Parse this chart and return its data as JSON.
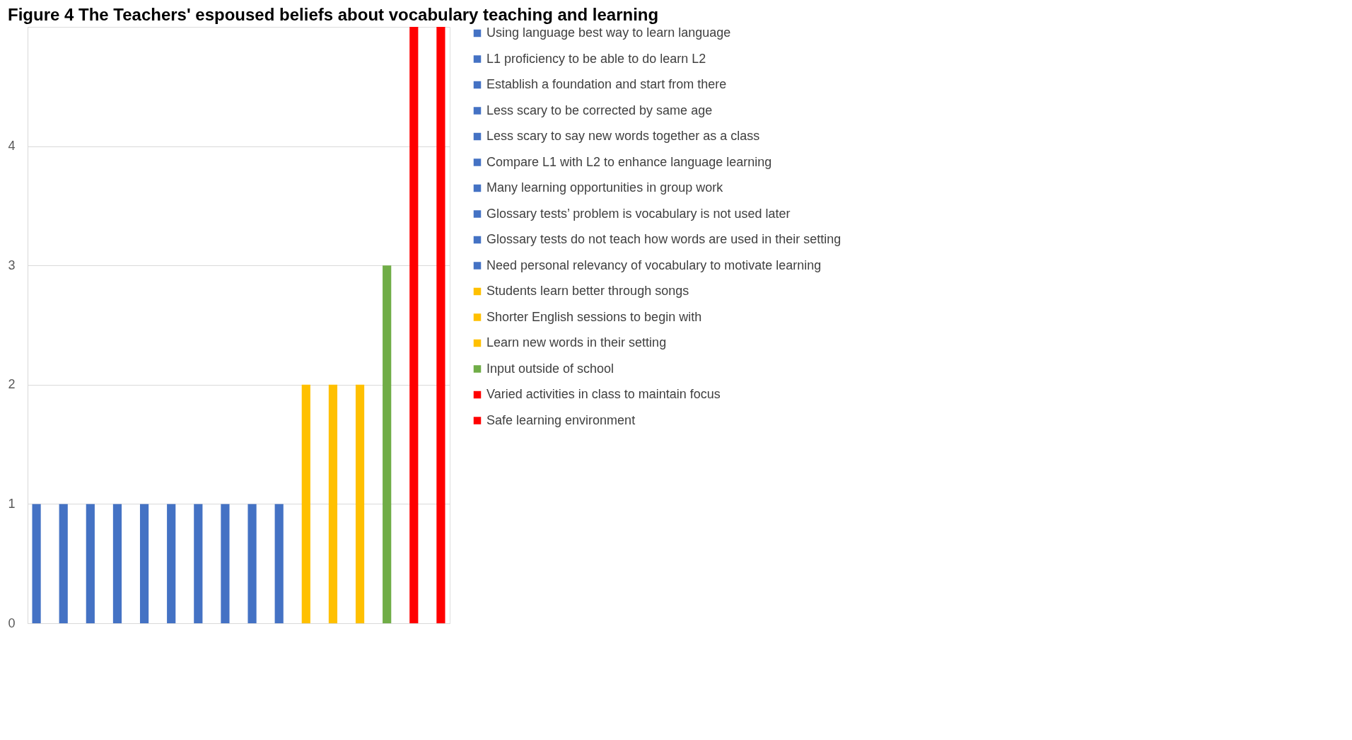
{
  "chart_data": {
    "type": "bar",
    "title": "Figure 4 The Teachers' espoused beliefs about vocabulary teaching and learning",
    "categories": [
      null,
      null,
      null,
      null,
      null,
      null,
      null,
      null,
      null,
      null,
      null,
      null,
      null,
      null,
      null,
      null
    ],
    "series": [
      {
        "name": "Using language best way to learn language",
        "color": "#4472c4",
        "values": [
          1,
          null,
          null,
          null,
          null,
          null,
          null,
          null,
          null,
          null,
          null,
          null,
          null,
          null,
          null,
          null
        ]
      },
      {
        "name": "L1 proficiency to be able to do learn L2",
        "color": "#4472c4",
        "values": [
          null,
          1,
          null,
          null,
          null,
          null,
          null,
          null,
          null,
          null,
          null,
          null,
          null,
          null,
          null,
          null
        ]
      },
      {
        "name": "Establish a foundation and start from there",
        "color": "#4472c4",
        "values": [
          null,
          null,
          1,
          null,
          null,
          null,
          null,
          null,
          null,
          null,
          null,
          null,
          null,
          null,
          null,
          null
        ]
      },
      {
        "name": "Less scary to be corrected by same age",
        "color": "#4472c4",
        "values": [
          null,
          null,
          null,
          1,
          null,
          null,
          null,
          null,
          null,
          null,
          null,
          null,
          null,
          null,
          null,
          null
        ]
      },
      {
        "name": "Less scary to say new words together as a class",
        "color": "#4472c4",
        "values": [
          null,
          null,
          null,
          null,
          1,
          null,
          null,
          null,
          null,
          null,
          null,
          null,
          null,
          null,
          null,
          null
        ]
      },
      {
        "name": "Compare L1 with  L2 to enhance language learning",
        "color": "#4472c4",
        "values": [
          null,
          null,
          null,
          null,
          null,
          1,
          null,
          null,
          null,
          null,
          null,
          null,
          null,
          null,
          null,
          null
        ]
      },
      {
        "name": "Many learning opportunities in group work",
        "color": "#4472c4",
        "values": [
          null,
          null,
          null,
          null,
          null,
          null,
          1,
          null,
          null,
          null,
          null,
          null,
          null,
          null,
          null,
          null
        ]
      },
      {
        "name": "Glossary tests’ problem is vocabulary is not used later",
        "color": "#4472c4",
        "values": [
          null,
          null,
          null,
          null,
          null,
          null,
          null,
          1,
          null,
          null,
          null,
          null,
          null,
          null,
          null,
          null
        ]
      },
      {
        "name": "Glossary tests do not teach how words are used in their setting",
        "color": "#4472c4",
        "values": [
          null,
          null,
          null,
          null,
          null,
          null,
          null,
          null,
          1,
          null,
          null,
          null,
          null,
          null,
          null,
          null
        ]
      },
      {
        "name": "Need personal relevancy of vocabulary to motivate learning",
        "color": "#4472c4",
        "values": [
          null,
          null,
          null,
          null,
          null,
          null,
          null,
          null,
          null,
          1,
          null,
          null,
          null,
          null,
          null,
          null
        ]
      },
      {
        "name": "Students learn better through songs",
        "color": "#ffc000",
        "values": [
          null,
          null,
          null,
          null,
          null,
          null,
          null,
          null,
          null,
          null,
          2,
          null,
          null,
          null,
          null,
          null
        ]
      },
      {
        "name": "Shorter English sessions to begin with",
        "color": "#ffc000",
        "values": [
          null,
          null,
          null,
          null,
          null,
          null,
          null,
          null,
          null,
          null,
          null,
          2,
          null,
          null,
          null,
          null
        ]
      },
      {
        "name": "Learn new words in their setting",
        "color": "#ffc000",
        "values": [
          null,
          null,
          null,
          null,
          null,
          null,
          null,
          null,
          null,
          null,
          null,
          null,
          2,
          null,
          null,
          null
        ]
      },
      {
        "name": "Input outside of school",
        "color": "#70ad47",
        "values": [
          null,
          null,
          null,
          null,
          null,
          null,
          null,
          null,
          null,
          null,
          null,
          null,
          null,
          3,
          null,
          null
        ]
      },
      {
        "name": "Varied activities in class to maintain focus",
        "color": "#ff0000",
        "values": [
          null,
          null,
          null,
          null,
          null,
          null,
          null,
          null,
          null,
          null,
          null,
          null,
          null,
          null,
          5,
          null
        ]
      },
      {
        "name": "Safe learning environment",
        "color": "#ff0000",
        "values": [
          null,
          null,
          null,
          null,
          null,
          null,
          null,
          null,
          null,
          null,
          null,
          null,
          null,
          null,
          null,
          5
        ]
      }
    ],
    "ylim": [
      0,
      5
    ],
    "yticks": [
      0,
      1,
      2,
      3,
      4
    ],
    "grid": "y",
    "legend": "right",
    "tick_labels": "y"
  }
}
